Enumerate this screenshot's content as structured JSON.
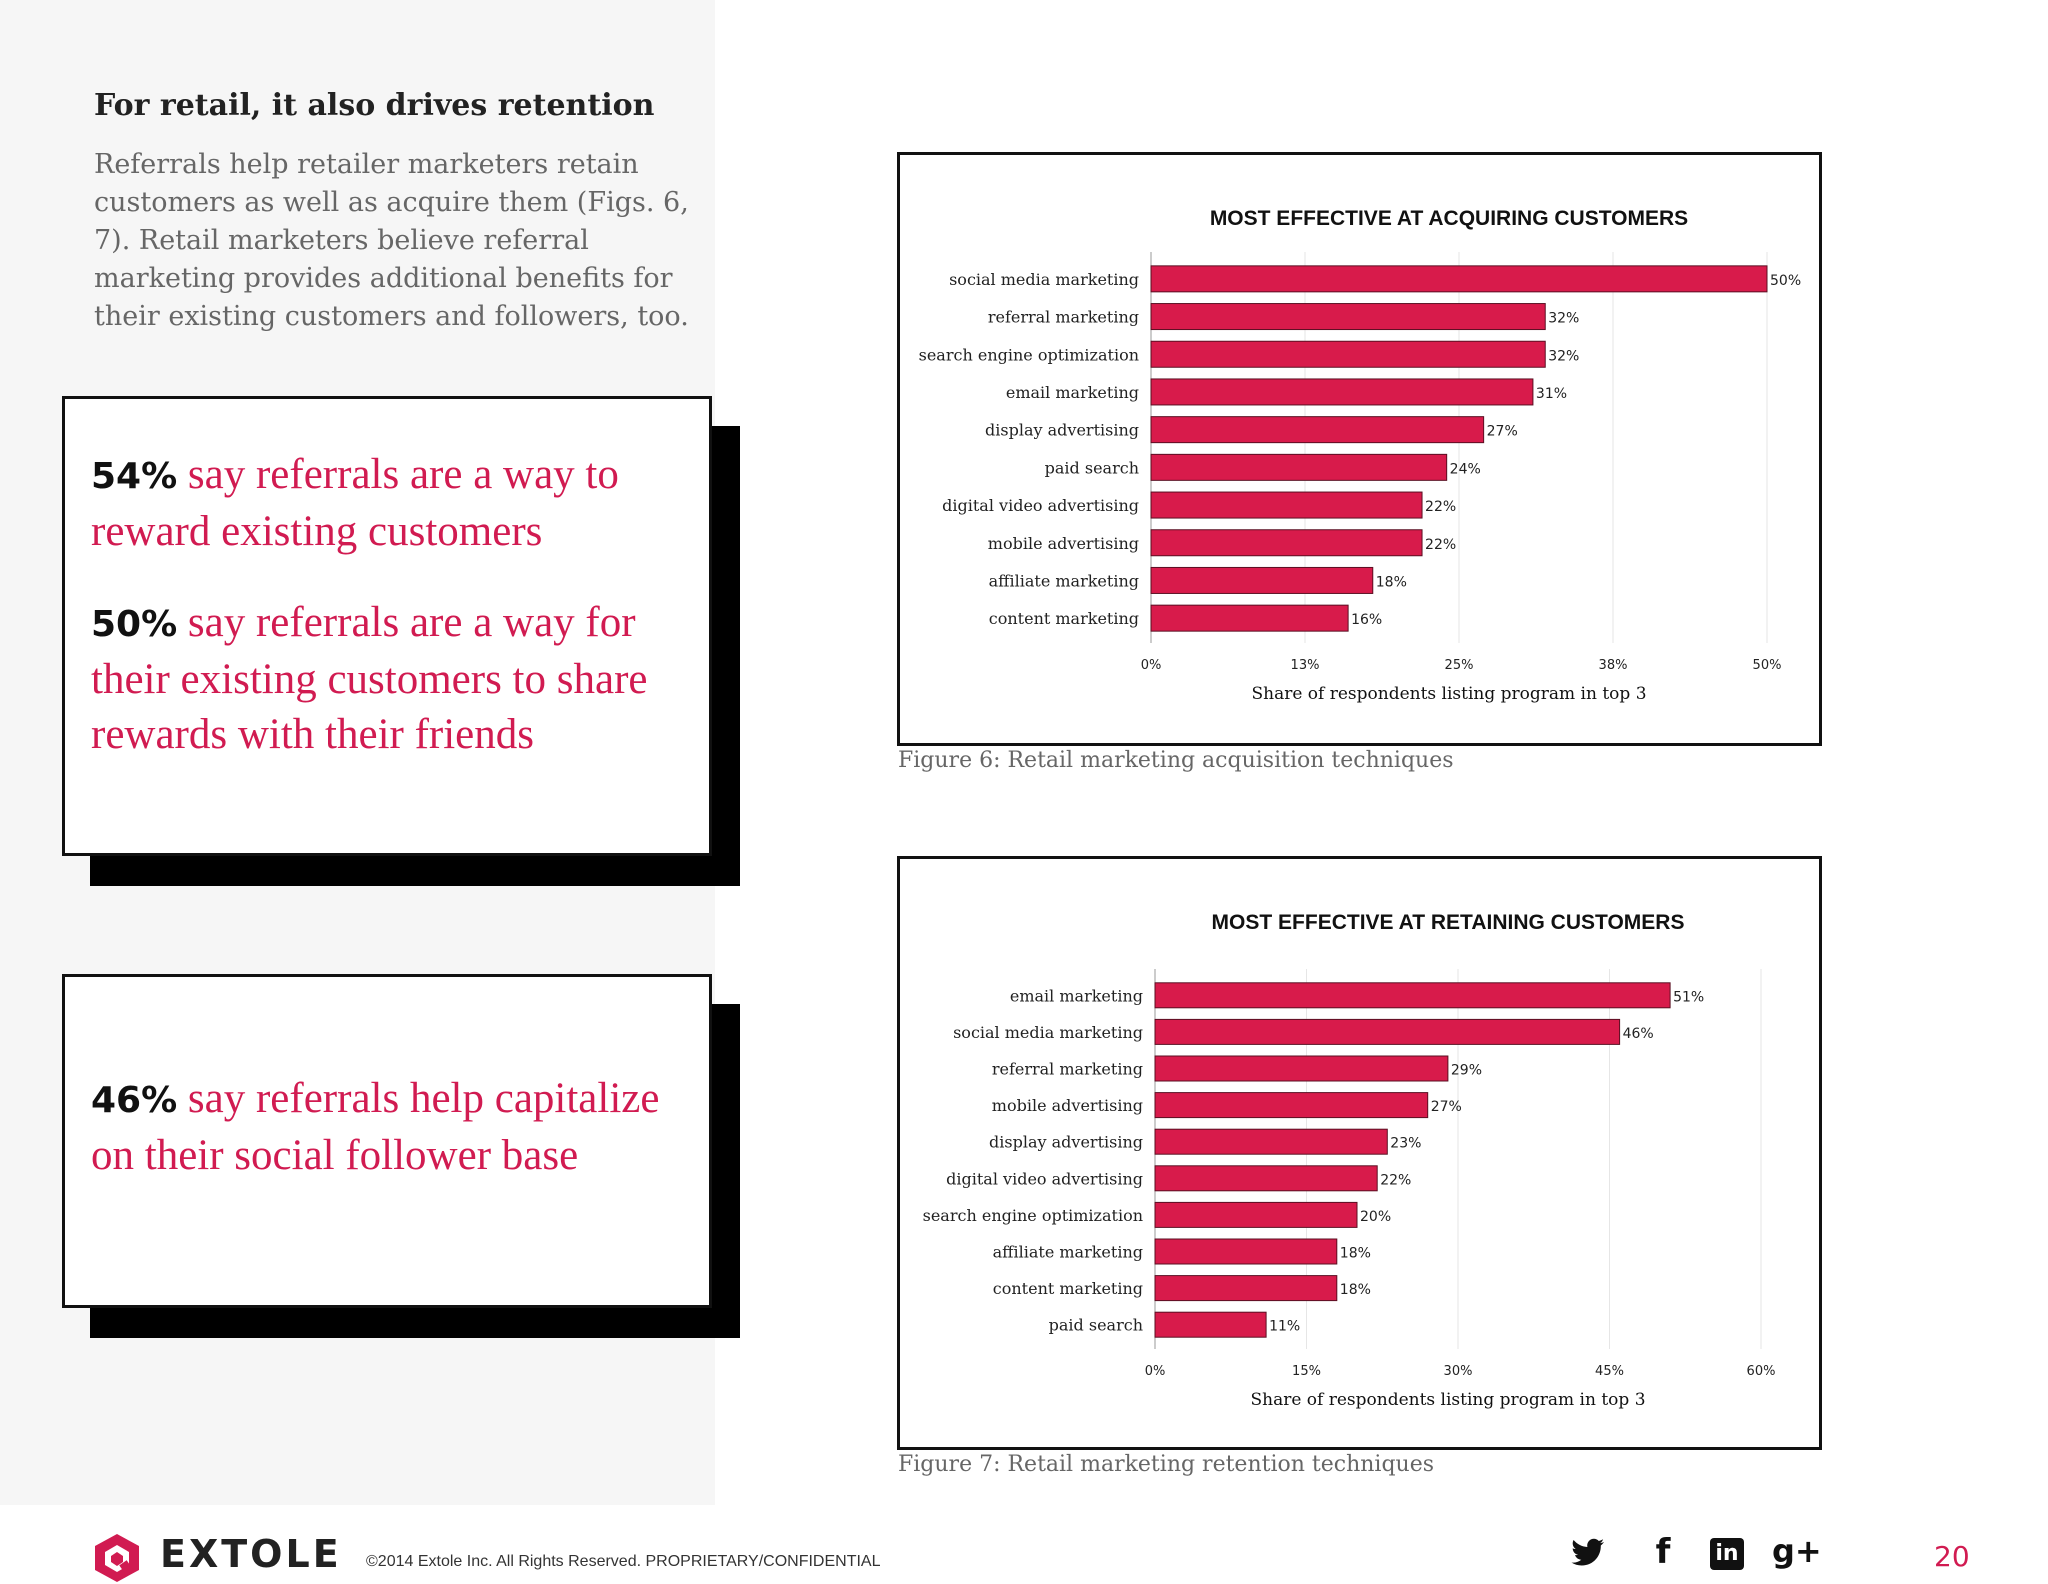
{
  "heading": "For retail, it also drives retention",
  "intro": "Referrals help retailer marketers retain customers as well as acquire them (Figs. 6, 7). Retail marketers believe referral marketing provides additional benefits for their existing customers and followers, too.",
  "callouts": [
    {
      "pct": "54%",
      "text": " say referrals are a way to reward existing customers"
    },
    {
      "pct": "50%",
      "text": " say referrals are a way for their existing customers to share rewards with their friends"
    },
    {
      "pct": "46%",
      "text": " say referrals help capitalize on their social follower base"
    }
  ],
  "captions": {
    "fig6": "Figure 6: Retail marketing acquisition techniques",
    "fig7": "Figure 7: Retail marketing retention techniques"
  },
  "colors": {
    "accent": "#d11b51",
    "bar": "#d81b4b",
    "bar_stroke": "#5a0f22"
  },
  "chart_data": [
    {
      "type": "bar",
      "orientation": "horizontal",
      "title": "MOST EFFECTIVE AT ACQUIRING CUSTOMERS",
      "categories": [
        "social media marketing",
        "referral marketing",
        "search engine optimization",
        "email marketing",
        "display advertising",
        "paid search",
        "digital video advertising",
        "mobile advertising",
        "affiliate marketing",
        "content marketing"
      ],
      "values": [
        50,
        32,
        32,
        31,
        27,
        24,
        22,
        22,
        18,
        16
      ],
      "value_labels": [
        "50%",
        "32%",
        "32%",
        "31%",
        "27%",
        "24%",
        "22%",
        "22%",
        "18%",
        "16%"
      ],
      "xlim": [
        0,
        50
      ],
      "xticks": [
        0,
        12.5,
        25,
        37.5,
        50
      ],
      "xtick_labels": [
        "0%",
        "13%",
        "25%",
        "38%",
        "50%"
      ],
      "xlabel": "Share of respondents listing program in top 3",
      "ylabel": ""
    },
    {
      "type": "bar",
      "orientation": "horizontal",
      "title": "MOST EFFECTIVE AT RETAINING CUSTOMERS",
      "categories": [
        "email marketing",
        "social media marketing",
        "referral marketing",
        "mobile advertising",
        "display advertising",
        "digital video advertising",
        "search engine optimization",
        "affiliate marketing",
        "content marketing",
        "paid search"
      ],
      "values": [
        51,
        46,
        29,
        27,
        23,
        22,
        20,
        18,
        18,
        11
      ],
      "value_labels": [
        "51%",
        "46%",
        "29%",
        "27%",
        "23%",
        "22%",
        "20%",
        "18%",
        "18%",
        "11%"
      ],
      "xlim": [
        0,
        60
      ],
      "xticks": [
        0,
        15,
        30,
        45,
        60
      ],
      "xtick_labels": [
        "0%",
        "15%",
        "30%",
        "45%",
        "60%"
      ],
      "xlabel": "Share of respondents listing program in top 3",
      "ylabel": ""
    }
  ],
  "footer": {
    "brand": "EXTOLE",
    "copyright": "©2014 Extole Inc. All Rights Reserved. PROPRIETARY/CONFIDENTIAL",
    "page_number": "20",
    "social": {
      "facebook": "f",
      "linkedin": "in",
      "googleplus": "g+"
    }
  }
}
